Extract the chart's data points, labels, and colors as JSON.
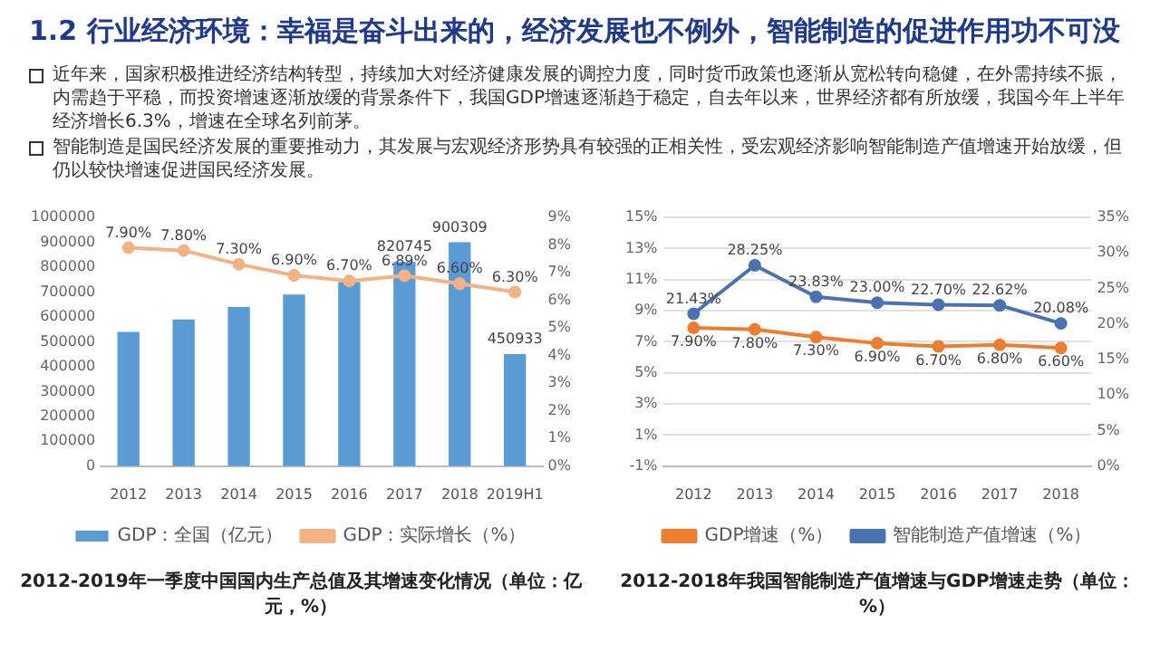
{
  "chart_data": [
    {
      "type": "other",
      "title": "1.2 行业经济环境：幸福是奋斗出来的，经济发展也不例外，智能制造的促进作用功不可没",
      "annotations": [
        "近年来，国家积极推进经济结构转型，持续加大对经济健康发展的调控力度，同时货币政策也逐渐从宽松转向稳健，在外需持续不振，内需趋于平稳，而投资增速逐渐放缓的背景条件下，我国GDP增速逐渐趋于稳定，自去年以来，世界经济都有所放缓，我国今年上半年经济增长6.3%，增速在全球名列前茅。",
        "智能制造是国民经济发展的重要推动力，其发展与宏观经济形势具有较强的正相关性，受宏观经济影响智能制造产值增速开始放缓，但仍以较快增速促进国民经济发展。"
      ]
    },
    {
      "type": "bar",
      "categories": [
        "2012",
        "2013",
        "2014",
        "2015",
        "2016",
        "2017",
        "2018",
        "2019H1"
      ],
      "series": [
        {
          "name": "GDP：全国（亿元）",
          "type": "bar",
          "color": "#5b9bd5",
          "values": [
            540000,
            590000,
            640000,
            690000,
            740000,
            820745,
            900309,
            450933
          ],
          "value_labels": [
            null,
            null,
            null,
            null,
            null,
            "820745",
            "900309",
            "450933"
          ]
        },
        {
          "name": "GDP：实际增长（%）",
          "type": "line",
          "axis": "y2",
          "color": "#f4b183",
          "values": [
            7.9,
            7.8,
            7.3,
            6.9,
            6.7,
            6.89,
            6.6,
            6.3
          ],
          "value_labels": [
            "7.90%",
            "7.80%",
            "7.30%",
            "6.90%",
            "6.70%",
            "6.89%",
            "6.60%",
            "6.30%"
          ]
        }
      ],
      "ylim": [
        0,
        1000000
      ],
      "yticks": [
        0,
        100000,
        200000,
        300000,
        400000,
        500000,
        600000,
        700000,
        800000,
        900000,
        1000000
      ],
      "y2lim": [
        0,
        9
      ],
      "y2ticks": [
        {
          "value": 0,
          "label": "0%"
        },
        {
          "value": 1,
          "label": "1%"
        },
        {
          "value": 2,
          "label": "2%"
        },
        {
          "value": 3,
          "label": "3%"
        },
        {
          "value": 4,
          "label": "4%"
        },
        {
          "value": 5,
          "label": "5%"
        },
        {
          "value": 6,
          "label": "6%"
        },
        {
          "value": 7,
          "label": "7%"
        },
        {
          "value": 8,
          "label": "8%"
        },
        {
          "value": 9,
          "label": "9%"
        }
      ],
      "legend": "bottom",
      "marker": "circle",
      "annotations": [
        "2012-2019年一季度中国国内生产总值及其增速变化情况（单位：亿元，%）"
      ]
    },
    {
      "type": "line",
      "categories": [
        "2012",
        "2013",
        "2014",
        "2015",
        "2016",
        "2017",
        "2018"
      ],
      "series": [
        {
          "name": "GDP增速（%）",
          "color": "#ed7d31",
          "values": [
            7.9,
            7.8,
            7.3,
            6.9,
            6.7,
            6.8,
            6.6
          ],
          "value_labels": [
            "7.90%",
            "7.80%",
            "7.30%",
            "6.90%",
            "6.70%",
            "6.80%",
            "6.60%"
          ]
        },
        {
          "name": "智能制造产值增速（%）",
          "axis": "y2",
          "color": "#4a72b0",
          "values": [
            21.43,
            28.25,
            23.83,
            23.0,
            22.7,
            22.62,
            20.08
          ],
          "value_labels": [
            "21.43%",
            "28.25%",
            "23.83%",
            "23.00%",
            "22.70%",
            "22.62%",
            "20.08%"
          ]
        }
      ],
      "ylim": [
        -1,
        15
      ],
      "yticks": [
        {
          "value": -1,
          "label": "-1%"
        },
        {
          "value": 1,
          "label": "1%"
        },
        {
          "value": 3,
          "label": "3%"
        },
        {
          "value": 5,
          "label": "5%"
        },
        {
          "value": 7,
          "label": "7%"
        },
        {
          "value": 9,
          "label": "9%"
        },
        {
          "value": 11,
          "label": "11%"
        },
        {
          "value": 13,
          "label": "13%"
        },
        {
          "value": 15,
          "label": "15%"
        }
      ],
      "y2lim": [
        0,
        35
      ],
      "y2ticks": [
        {
          "value": 0,
          "label": "0%"
        },
        {
          "value": 5,
          "label": "5%"
        },
        {
          "value": 10,
          "label": "10%"
        },
        {
          "value": 15,
          "label": "15%"
        },
        {
          "value": 20,
          "label": "20%"
        },
        {
          "value": 25,
          "label": "25%"
        },
        {
          "value": 30,
          "label": "30%"
        },
        {
          "value": 35,
          "label": "35%"
        }
      ],
      "grid": "y",
      "legend": "bottom",
      "marker": "circle",
      "annotations": [
        "2012-2018年我国智能制造产值增速与GDP增速走势（单位：%）"
      ]
    }
  ]
}
